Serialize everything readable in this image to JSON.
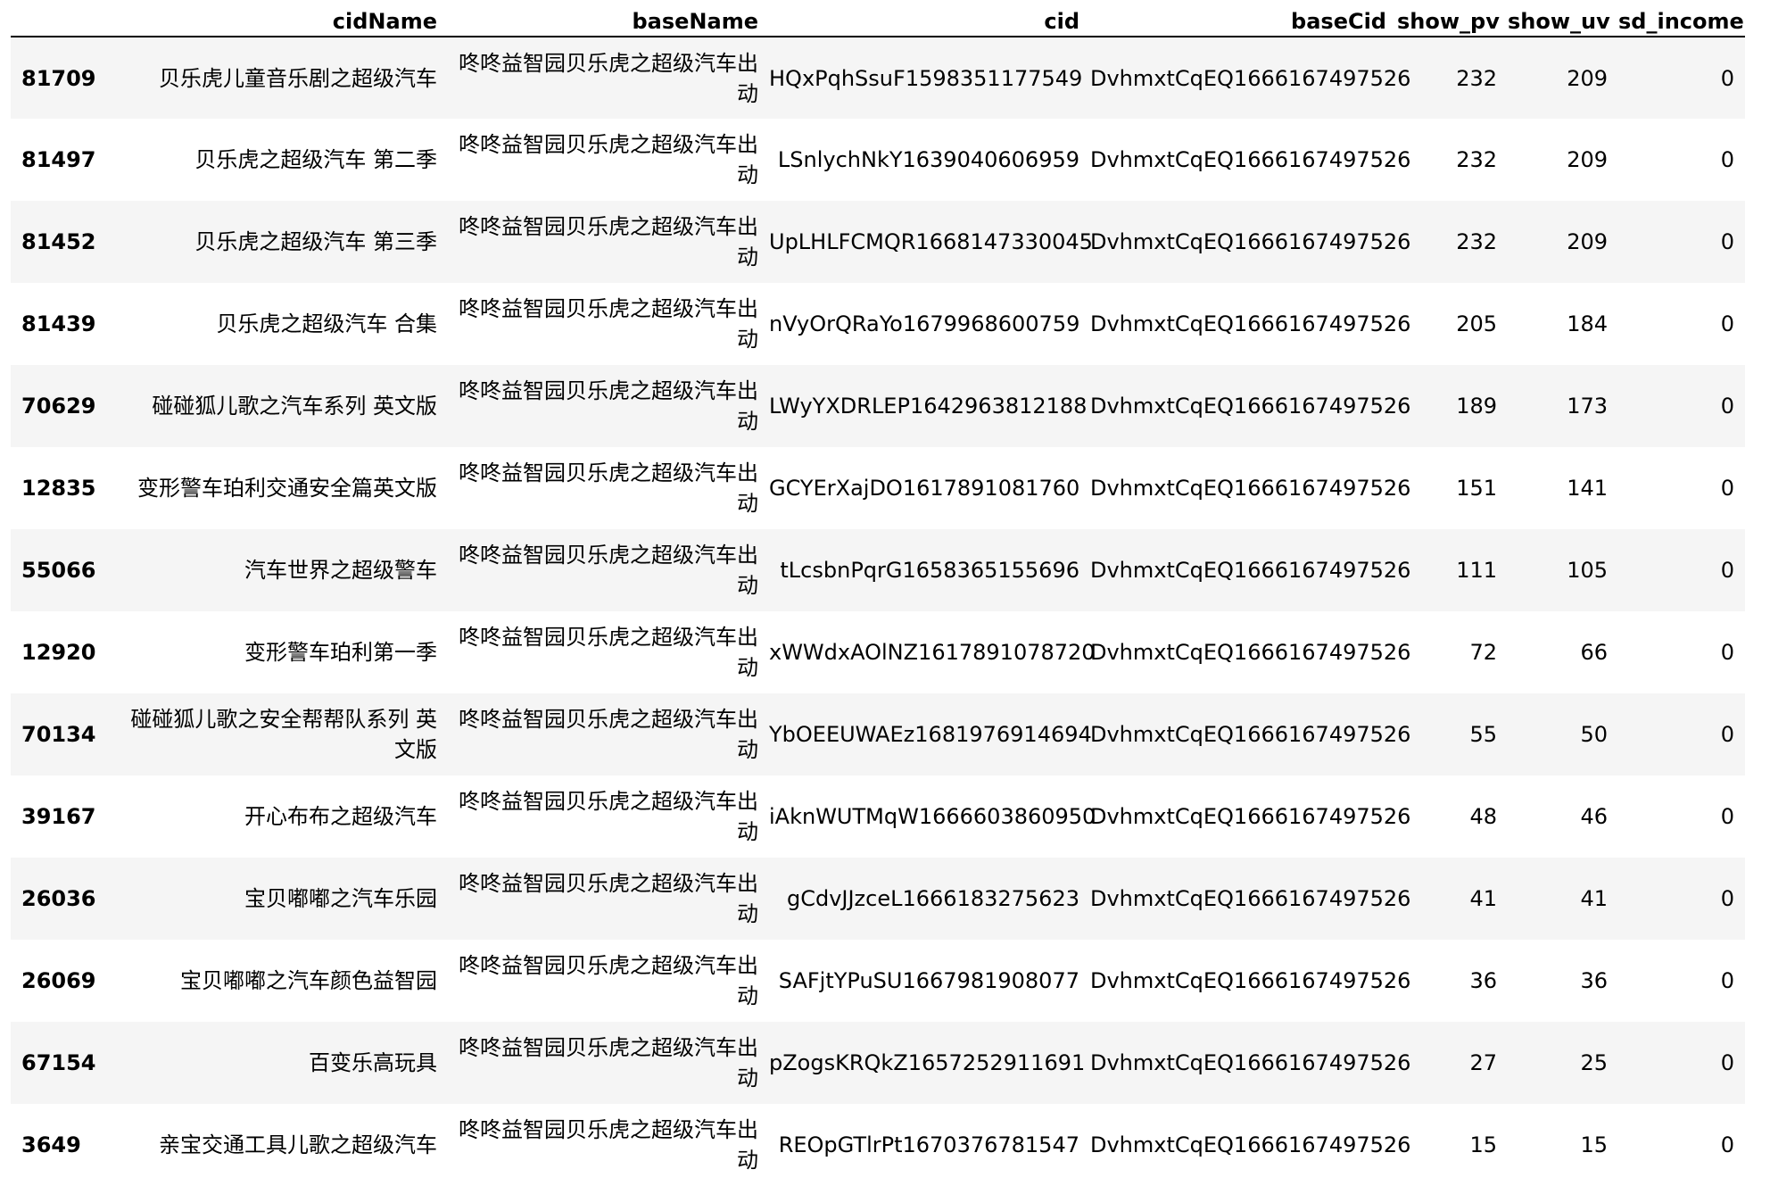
{
  "table": {
    "columns": [
      "",
      "cidName",
      "baseName",
      "cid",
      "baseCid",
      "show_pv",
      "show_uv",
      "sd_income"
    ],
    "rows": [
      {
        "index": "81709",
        "cidName": "贝乐虎儿童音乐剧之超级汽车",
        "baseName": "咚咚益智园贝乐虎之超级汽车出动",
        "cid": "HQxPqhSsuF1598351177549",
        "baseCid": "DvhmxtCqEQ1666167497526",
        "show_pv": "232",
        "show_uv": "209",
        "sd_income": "0"
      },
      {
        "index": "81497",
        "cidName": "贝乐虎之超级汽车 第二季",
        "baseName": "咚咚益智园贝乐虎之超级汽车出动",
        "cid": "LSnlychNkY1639040606959",
        "baseCid": "DvhmxtCqEQ1666167497526",
        "show_pv": "232",
        "show_uv": "209",
        "sd_income": "0"
      },
      {
        "index": "81452",
        "cidName": "贝乐虎之超级汽车 第三季",
        "baseName": "咚咚益智园贝乐虎之超级汽车出动",
        "cid": "UpLHLFCMQR1668147330045",
        "baseCid": "DvhmxtCqEQ1666167497526",
        "show_pv": "232",
        "show_uv": "209",
        "sd_income": "0"
      },
      {
        "index": "81439",
        "cidName": "贝乐虎之超级汽车 合集",
        "baseName": "咚咚益智园贝乐虎之超级汽车出动",
        "cid": "nVyOrQRaYo1679968600759",
        "baseCid": "DvhmxtCqEQ1666167497526",
        "show_pv": "205",
        "show_uv": "184",
        "sd_income": "0"
      },
      {
        "index": "70629",
        "cidName": "碰碰狐儿歌之汽车系列 英文版",
        "baseName": "咚咚益智园贝乐虎之超级汽车出动",
        "cid": "LWyYXDRLEP1642963812188",
        "baseCid": "DvhmxtCqEQ1666167497526",
        "show_pv": "189",
        "show_uv": "173",
        "sd_income": "0"
      },
      {
        "index": "12835",
        "cidName": "变形警车珀利交通安全篇英文版",
        "baseName": "咚咚益智园贝乐虎之超级汽车出动",
        "cid": "GCYErXajDO1617891081760",
        "baseCid": "DvhmxtCqEQ1666167497526",
        "show_pv": "151",
        "show_uv": "141",
        "sd_income": "0"
      },
      {
        "index": "55066",
        "cidName": "汽车世界之超级警车",
        "baseName": "咚咚益智园贝乐虎之超级汽车出动",
        "cid": "tLcsbnPqrG1658365155696",
        "baseCid": "DvhmxtCqEQ1666167497526",
        "show_pv": "111",
        "show_uv": "105",
        "sd_income": "0"
      },
      {
        "index": "12920",
        "cidName": "变形警车珀利第一季",
        "baseName": "咚咚益智园贝乐虎之超级汽车出动",
        "cid": "xWWdxAOlNZ1617891078720",
        "baseCid": "DvhmxtCqEQ1666167497526",
        "show_pv": "72",
        "show_uv": "66",
        "sd_income": "0"
      },
      {
        "index": "70134",
        "cidName": "碰碰狐儿歌之安全帮帮队系列 英文版",
        "baseName": "咚咚益智园贝乐虎之超级汽车出动",
        "cid": "YbOEEUWAEz1681976914694",
        "baseCid": "DvhmxtCqEQ1666167497526",
        "show_pv": "55",
        "show_uv": "50",
        "sd_income": "0"
      },
      {
        "index": "39167",
        "cidName": "开心布布之超级汽车",
        "baseName": "咚咚益智园贝乐虎之超级汽车出动",
        "cid": "iAknWUTMqW1666603860950",
        "baseCid": "DvhmxtCqEQ1666167497526",
        "show_pv": "48",
        "show_uv": "46",
        "sd_income": "0"
      },
      {
        "index": "26036",
        "cidName": "宝贝嘟嘟之汽车乐园",
        "baseName": "咚咚益智园贝乐虎之超级汽车出动",
        "cid": "gCdvJJzceL1666183275623",
        "baseCid": "DvhmxtCqEQ1666167497526",
        "show_pv": "41",
        "show_uv": "41",
        "sd_income": "0"
      },
      {
        "index": "26069",
        "cidName": "宝贝嘟嘟之汽车颜色益智园",
        "baseName": "咚咚益智园贝乐虎之超级汽车出动",
        "cid": "SAFjtYPuSU1667981908077",
        "baseCid": "DvhmxtCqEQ1666167497526",
        "show_pv": "36",
        "show_uv": "36",
        "sd_income": "0"
      },
      {
        "index": "67154",
        "cidName": "百变乐高玩具",
        "baseName": "咚咚益智园贝乐虎之超级汽车出动",
        "cid": "pZogsKRQkZ1657252911691",
        "baseCid": "DvhmxtCqEQ1666167497526",
        "show_pv": "27",
        "show_uv": "25",
        "sd_income": "0"
      },
      {
        "index": "3649",
        "cidName": "亲宝交通工具儿歌之超级汽车",
        "baseName": "咚咚益智园贝乐虎之超级汽车出动",
        "cid": "REOpGTlrPt1670376781547",
        "baseCid": "DvhmxtCqEQ1666167497526",
        "show_pv": "15",
        "show_uv": "15",
        "sd_income": "0"
      }
    ]
  }
}
